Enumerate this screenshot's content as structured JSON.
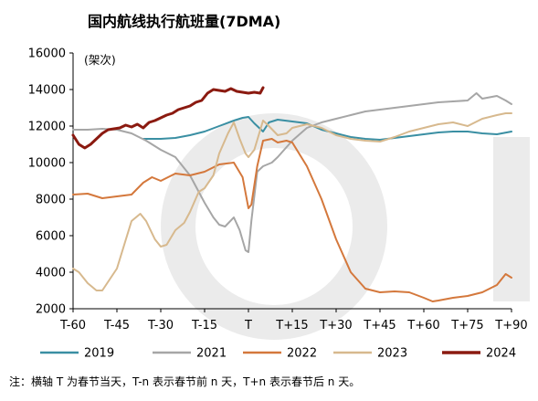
{
  "chart_data": {
    "type": "line",
    "title": "国内航线执行航班量(7DMA)",
    "unit_label": "(架次)",
    "xlabel": "",
    "ylabel": "",
    "xlim": [
      -60,
      90
    ],
    "ylim": [
      2000,
      16000
    ],
    "x_ticks": [
      {
        "value": -60,
        "label": "T-60"
      },
      {
        "value": -45,
        "label": "T-45"
      },
      {
        "value": -30,
        "label": "T-30"
      },
      {
        "value": -15,
        "label": "T-15"
      },
      {
        "value": 0,
        "label": "T"
      },
      {
        "value": 15,
        "label": "T+15"
      },
      {
        "value": 30,
        "label": "T+30"
      },
      {
        "value": 45,
        "label": "T+45"
      },
      {
        "value": 60,
        "label": "T+60"
      },
      {
        "value": 75,
        "label": "T+75"
      },
      {
        "value": 90,
        "label": "T+90"
      }
    ],
    "y_ticks": [
      2000,
      4000,
      6000,
      8000,
      10000,
      12000,
      14000,
      16000
    ],
    "grid": false,
    "legend_position": "bottom",
    "series": [
      {
        "name": "2019",
        "color": "#3a8fa3",
        "width": 2,
        "x": [
          -36,
          -30,
          -25,
          -20,
          -15,
          -10,
          -5,
          -2,
          0,
          2,
          5,
          7,
          10,
          15,
          20,
          25,
          30,
          35,
          40,
          45,
          50,
          55,
          60,
          65,
          70,
          75,
          80,
          85,
          90
        ],
        "y": [
          11300,
          11300,
          11350,
          11500,
          11700,
          12000,
          12300,
          12450,
          12500,
          12150,
          11700,
          12200,
          12350,
          12250,
          12150,
          11800,
          11600,
          11400,
          11300,
          11250,
          11350,
          11450,
          11550,
          11650,
          11700,
          11700,
          11600,
          11550,
          11700
        ]
      },
      {
        "name": "2021",
        "color": "#a6a6a6",
        "width": 2,
        "x": [
          -60,
          -55,
          -50,
          -45,
          -40,
          -35,
          -30,
          -25,
          -20,
          -15,
          -12,
          -10,
          -8,
          -5,
          -3,
          -1,
          0,
          1,
          3,
          5,
          8,
          10,
          15,
          20,
          25,
          30,
          35,
          40,
          45,
          50,
          55,
          60,
          65,
          70,
          75,
          78,
          80,
          85,
          88,
          90
        ],
        "y": [
          11800,
          11800,
          11850,
          11800,
          11600,
          11200,
          10700,
          10300,
          9300,
          7800,
          7000,
          6600,
          6500,
          7000,
          6300,
          5200,
          5100,
          6800,
          9500,
          9800,
          10000,
          10300,
          11200,
          11900,
          12200,
          12400,
          12600,
          12800,
          12900,
          13000,
          13100,
          13200,
          13300,
          13350,
          13400,
          13800,
          13500,
          13650,
          13400,
          13200
        ]
      },
      {
        "name": "2022",
        "color": "#d4783c",
        "width": 2,
        "x": [
          -60,
          -55,
          -50,
          -45,
          -40,
          -36,
          -33,
          -30,
          -25,
          -20,
          -15,
          -10,
          -5,
          -2,
          0,
          1,
          3,
          5,
          8,
          10,
          13,
          15,
          20,
          25,
          30,
          35,
          40,
          45,
          50,
          55,
          60,
          63,
          65,
          70,
          75,
          80,
          85,
          88,
          90
        ],
        "y": [
          8250,
          8300,
          8050,
          8150,
          8250,
          8900,
          9200,
          9000,
          9400,
          9300,
          9500,
          9900,
          10000,
          9200,
          7500,
          7700,
          9800,
          11200,
          11300,
          11100,
          11200,
          11100,
          9800,
          8000,
          5800,
          4000,
          3100,
          2900,
          2950,
          2900,
          2600,
          2400,
          2450,
          2600,
          2700,
          2900,
          3300,
          3900,
          3700
        ]
      },
      {
        "name": "2023",
        "color": "#d7b98e",
        "width": 2,
        "x": [
          -60,
          -58,
          -55,
          -52,
          -50,
          -45,
          -40,
          -37,
          -35,
          -32,
          -30,
          -28,
          -25,
          -22,
          -20,
          -17,
          -15,
          -12,
          -10,
          -7,
          -5,
          -3,
          -1,
          0,
          2,
          5,
          7,
          10,
          13,
          15,
          20,
          25,
          30,
          35,
          40,
          45,
          50,
          55,
          60,
          65,
          70,
          75,
          80,
          85,
          88,
          90
        ],
        "y": [
          4200,
          4000,
          3400,
          3000,
          3000,
          4200,
          6800,
          7200,
          6800,
          5800,
          5400,
          5500,
          6300,
          6700,
          7300,
          8400,
          8600,
          9300,
          10500,
          11600,
          12200,
          11300,
          10500,
          10300,
          10700,
          12300,
          12000,
          11500,
          11600,
          11900,
          12100,
          11900,
          11500,
          11300,
          11200,
          11150,
          11400,
          11700,
          11900,
          12100,
          12200,
          12000,
          12400,
          12600,
          12700,
          12700
        ]
      },
      {
        "name": "2024",
        "color": "#8b1a10",
        "width": 3,
        "x": [
          -60,
          -58,
          -56,
          -54,
          -52,
          -50,
          -48,
          -46,
          -44,
          -42,
          -40,
          -38,
          -36,
          -34,
          -32,
          -30,
          -28,
          -26,
          -24,
          -22,
          -20,
          -18,
          -16,
          -14,
          -12,
          -10,
          -8,
          -6,
          -4,
          -2,
          0,
          2,
          4,
          5
        ],
        "y": [
          11500,
          11000,
          10800,
          11000,
          11300,
          11600,
          11800,
          11850,
          11900,
          12050,
          11950,
          12100,
          11900,
          12200,
          12300,
          12450,
          12600,
          12700,
          12900,
          13000,
          13100,
          13300,
          13400,
          13800,
          14000,
          13950,
          13900,
          14050,
          13900,
          13850,
          13800,
          13850,
          13800,
          14100
        ]
      }
    ],
    "footnote": "注：横轴 T 为春节当天，T-n 表示春节前 n 天，T+n 表示春节后 n 天。"
  }
}
